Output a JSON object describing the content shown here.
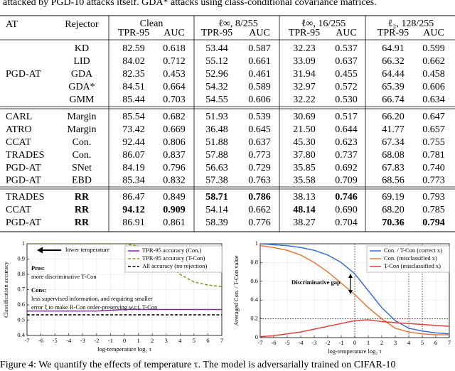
{
  "header": {
    "text": "attacked by PGD-10 attacks itself. GDA* attacks using class-conditional covariance matrices."
  },
  "table": {
    "header": [
      "AT",
      "Rejector",
      "Clean",
      "ℓ∞, 8/255",
      "ℓ∞, 16/255",
      "ℓ₂, 128/255"
    ],
    "subheader": [
      "TPR-95",
      "AUC",
      "TPR-95",
      "AUC",
      "TPR-95",
      "AUC",
      "TPR-95",
      "AUC"
    ],
    "groups": [
      {
        "at": "PGD-AT",
        "rows": [
          {
            "cells": [
              "KD",
              "82.59",
              "0.618",
              "53.44",
              "0.587",
              "32.23",
              "0.537",
              "64.91",
              "0.599"
            ],
            "bold": []
          },
          {
            "cells": [
              "LID",
              "84.02",
              "0.712",
              "55.12",
              "0.661",
              "33.09",
              "0.637",
              "66.32",
              "0.662"
            ],
            "bold": []
          },
          {
            "cells": [
              "GDA",
              "82.35",
              "0.453",
              "52.96",
              "0.461",
              "31.94",
              "0.455",
              "64.44",
              "0.458"
            ],
            "bold": []
          },
          {
            "cells": [
              "GDA*",
              "84.51",
              "0.664",
              "54.32",
              "0.589",
              "32.97",
              "0.572",
              "65.39",
              "0.606"
            ],
            "bold": []
          },
          {
            "cells": [
              "GMM",
              "85.44",
              "0.703",
              "54.55",
              "0.606",
              "32.22",
              "0.530",
              "66.74",
              "0.634"
            ],
            "bold": []
          }
        ]
      },
      {
        "rows": [
          {
            "at": "CARL",
            "cells": [
              "Margin",
              "85.54",
              "0.682",
              "51.93",
              "0.539",
              "30.69",
              "0.517",
              "66.20",
              "0.647"
            ],
            "bold": []
          },
          {
            "at": "ATRO",
            "cells": [
              "Margin",
              "73.42",
              "0.669",
              "36.48",
              "0.645",
              "21.50",
              "0.644",
              "41.77",
              "0.657"
            ],
            "bold": []
          },
          {
            "at": "CCAT",
            "cells": [
              "Con.",
              "92.44",
              "0.806",
              "51.88",
              "0.637",
              "45.30",
              "0.623",
              "67.34",
              "0.755"
            ],
            "bold": []
          },
          {
            "at": "TRADES",
            "cells": [
              "Con.",
              "86.07",
              "0.837",
              "57.88",
              "0.773",
              "37.80",
              "0.737",
              "68.08",
              "0.781"
            ],
            "bold": []
          },
          {
            "at": "PGD-AT",
            "cells": [
              "SNet",
              "84.19",
              "0.796",
              "56.63",
              "0.729",
              "35.85",
              "0.692",
              "67.83",
              "0.740"
            ],
            "bold": []
          },
          {
            "at": "PGD-AT",
            "cells": [
              "EBD",
              "85.34",
              "0.832",
              "57.38",
              "0.763",
              "35.58",
              "0.709",
              "68.56",
              "0.773"
            ],
            "bold": []
          }
        ]
      },
      {
        "rows": [
          {
            "at": "TRADES",
            "cells": [
              "RR",
              "86.47",
              "0.849",
              "58.71",
              "0.786",
              "38.13",
              "0.746",
              "69.19",
              "0.793"
            ],
            "bold": [
              0,
              3,
              4,
              6
            ]
          },
          {
            "at": "CCAT",
            "cells": [
              "RR",
              "94.12",
              "0.909",
              "54.14",
              "0.662",
              "48.14",
              "0.690",
              "68.20",
              "0.785"
            ],
            "bold": [
              0,
              1,
              2,
              5
            ]
          },
          {
            "at": "PGD-AT",
            "cells": [
              "RR",
              "86.91",
              "0.861",
              "58.39",
              "0.776",
              "38.27",
              "0.704",
              "70.36",
              "0.794"
            ],
            "bold": [
              0,
              7,
              8
            ]
          }
        ]
      }
    ]
  },
  "chart_data": [
    {
      "type": "line",
      "xlabel": "log-temperature log₂ τ",
      "ylabel": "Classification accuracy",
      "x": [
        -7,
        -6,
        -5,
        -4,
        -3,
        -2,
        -1,
        0,
        1,
        2,
        3,
        4,
        5,
        6,
        7
      ],
      "xlim": [
        -7,
        7
      ],
      "xticks": [
        -7,
        -6,
        -5,
        -4,
        -3,
        -2,
        -1,
        0,
        1,
        2,
        3,
        4,
        5,
        6,
        7
      ],
      "ylim": [
        0.4,
        1.0
      ],
      "yticks": [
        0.4,
        0.5,
        0.6,
        0.7,
        0.8,
        0.9,
        1
      ],
      "grid": true,
      "legend": "upper right",
      "series": [
        {
          "name": "TPR-95 accuracy (Con.)",
          "color": "#7b2f9e",
          "dashed": false,
          "values": [
            0.56,
            0.56,
            0.56,
            0.56,
            0.56,
            0.56,
            0.565,
            0.57,
            0.57,
            0.57,
            0.57,
            0.57,
            0.57,
            0.57,
            0.57
          ]
        },
        {
          "name": "TPR-95 accuracy (T-Con)",
          "color": "#7a9a1e",
          "dashed": true,
          "values": [
            1.0,
            1.0,
            1.0,
            1.0,
            1.0,
            1.0,
            1.0,
            1.0,
            0.985,
            0.95,
            0.88,
            0.8,
            0.75,
            0.73,
            0.72
          ]
        },
        {
          "name": "All accuracy (no rejection)",
          "color": "#000000",
          "dashed": true,
          "values": [
            0.535,
            0.535,
            0.535,
            0.535,
            0.535,
            0.535,
            0.535,
            0.535,
            0.535,
            0.535,
            0.535,
            0.535,
            0.535,
            0.535,
            0.535
          ]
        }
      ],
      "annotations": [
        "lower temperature",
        "Pros:",
        "more discriminative T-Con",
        "Cons:",
        "less supervised information, and requiring smaller",
        "error ξ to make R-Con order-preserving w.r.t. T-Con"
      ]
    },
    {
      "type": "line",
      "xlabel": "log-temperature log₂ τ",
      "ylabel": "Averaged Con. / T-Con value",
      "x": [
        -7,
        -6,
        -5,
        -4,
        -3,
        -2,
        -1,
        0,
        1,
        2,
        3,
        4,
        5,
        6,
        7
      ],
      "xlim": [
        -7,
        7
      ],
      "xticks": [
        -7,
        -6,
        -5,
        -4,
        -3,
        -2,
        -1,
        0,
        1,
        2,
        3,
        4,
        5,
        6,
        7
      ],
      "ylim": [
        0,
        1
      ],
      "yticks": [
        0,
        0.2,
        0.4,
        0.6,
        0.8,
        1
      ],
      "grid": true,
      "legend": "upper right",
      "vlines": [
        0,
        4,
        5
      ],
      "hlines": [
        0.2
      ],
      "series": [
        {
          "name": "Con. / T-Con (correct x)",
          "color": "#3b6fd4",
          "dashed": false,
          "values": [
            1.0,
            0.99,
            0.98,
            0.96,
            0.93,
            0.88,
            0.8,
            0.68,
            0.5,
            0.32,
            0.18,
            0.1,
            0.07,
            0.05,
            0.04
          ]
        },
        {
          "name": "Con. (misclassified x)",
          "color": "#e8783a",
          "dashed": false,
          "values": [
            0.98,
            0.96,
            0.93,
            0.88,
            0.8,
            0.7,
            0.58,
            0.46,
            0.32,
            0.2,
            0.1,
            0.06,
            0.04,
            0.03,
            0.03
          ]
        },
        {
          "name": "T-Con (misclassified x)",
          "color": "#e0413a",
          "dashed": false,
          "values": [
            0.01,
            0.02,
            0.04,
            0.06,
            0.09,
            0.12,
            0.15,
            0.18,
            0.19,
            0.17,
            0.16,
            0.15,
            0.14,
            0.13,
            0.12
          ]
        }
      ],
      "annotations": [
        "Discriminative gap"
      ]
    }
  ],
  "caption": "Figure 4: We quantify the effects of temperature τ. The model is adversarially trained on CIFAR-10"
}
